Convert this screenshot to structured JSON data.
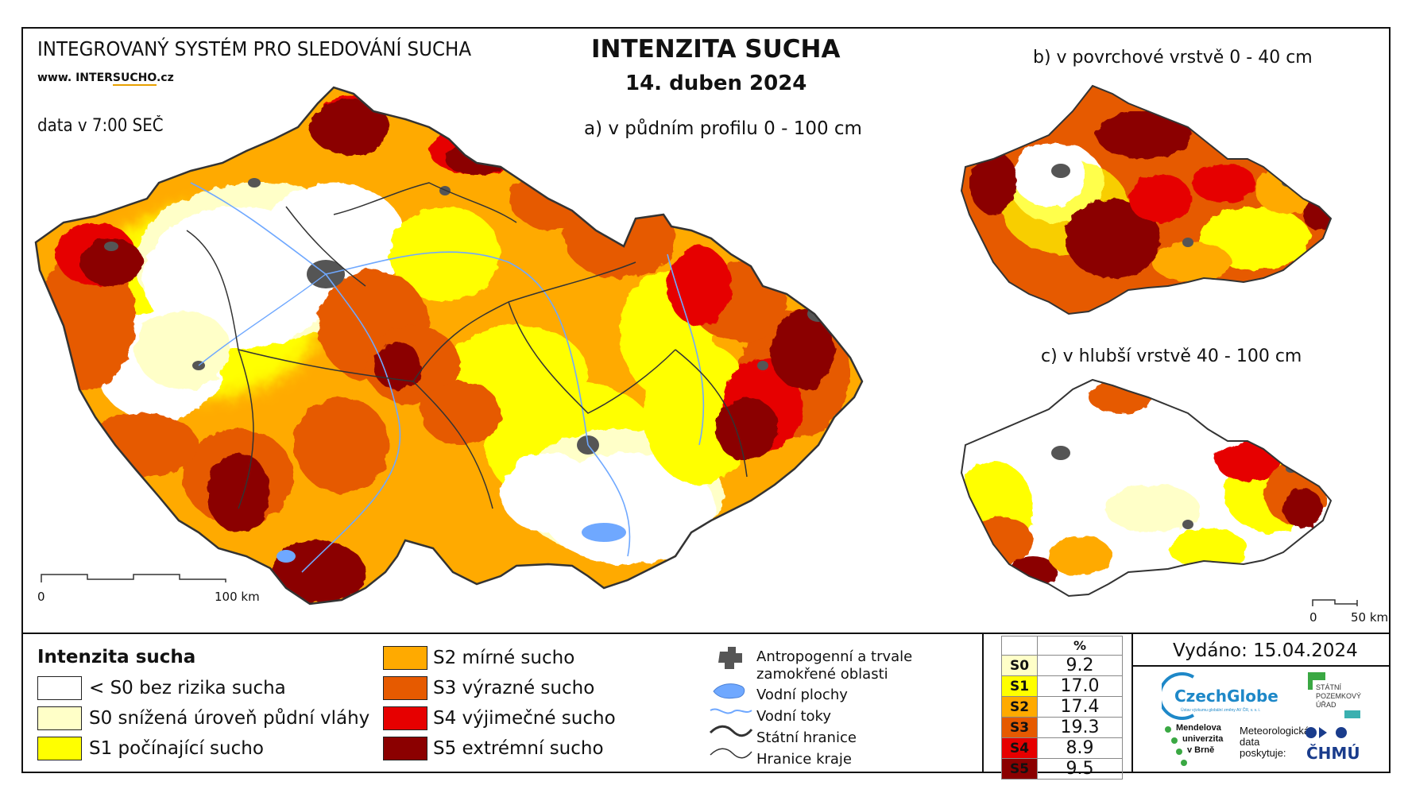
{
  "header": {
    "system_name": "INTEGROVANÝ SYSTÉM PRO SLEDOVÁNÍ SUCHA",
    "website_prefix": "www. INTER",
    "website_mid": "SUCHO",
    "website_suffix": ".cz",
    "data_time": "data v 7:00 SEČ",
    "main_title": "INTENZITA SUCHA",
    "date": "14. duben 2024"
  },
  "maps": {
    "main_label": "a) v půdním profilu 0 - 100 cm",
    "top_right_label": "b) v povrchové vrstvě 0 - 40 cm",
    "bottom_right_label": "c) v hlubší vrstvě 40 - 100 cm"
  },
  "scale_main": {
    "start": "0",
    "end": "100 km"
  },
  "scale_small": {
    "start": "0",
    "end": "50 km"
  },
  "legend": {
    "title": "Intenzita sucha",
    "items": [
      {
        "label": "< S0 bez rizika sucha",
        "color": "#ffffff"
      },
      {
        "label": "S0 snížená úroveň půdní vláhy",
        "color": "#ffffc8"
      },
      {
        "label": "S1 počínající sucho",
        "color": "#ffff00"
      },
      {
        "label": "S2 mírné sucho",
        "color": "#ffaa00"
      },
      {
        "label": "S3 výrazné sucho",
        "color": "#e65a00"
      },
      {
        "label": "S4 výjimečné sucho",
        "color": "#e60000"
      },
      {
        "label": "S5 extrémní sucho",
        "color": "#8b0000"
      }
    ]
  },
  "symbols": {
    "anthropogenic_line1": "Antropogenní a trvale",
    "anthropogenic_line2": "zamokřené oblasti",
    "water_bodies": "Vodní plochy",
    "rivers": "Vodní toky",
    "state_border": "Státní hranice",
    "region_border": "Hranice kraje"
  },
  "percent_table": {
    "header": "%",
    "rows": [
      {
        "code": "S0",
        "value": "9.2",
        "color": "#ffffc8"
      },
      {
        "code": "S1",
        "value": "17.0",
        "color": "#ffff00"
      },
      {
        "code": "S2",
        "value": "17.4",
        "color": "#ffaa00"
      },
      {
        "code": "S3",
        "value": "19.3",
        "color": "#e65a00"
      },
      {
        "code": "S4",
        "value": "8.9",
        "color": "#e60000"
      },
      {
        "code": "S5",
        "value": "9.5",
        "color": "#8b0000"
      }
    ]
  },
  "issued": "Vydáno: 15.04.2024",
  "logos": {
    "czechglobe": "CzechGlobe",
    "czechglobe_sub": "Ústav výzkumu globální změny AV ČR, v. v. i.",
    "spu_line1": "STÁTNÍ",
    "spu_line2": "POZEMKOVÝ",
    "spu_line3": "ÚŘAD",
    "mendel_line1": "Mendelova",
    "mendel_line2": "univerzita",
    "mendel_line3": "v Brně",
    "meteo_line1": "Meteorologická",
    "meteo_line2": "data",
    "meteo_line3": "poskytuje:",
    "chmu": "ČHMÚ"
  }
}
